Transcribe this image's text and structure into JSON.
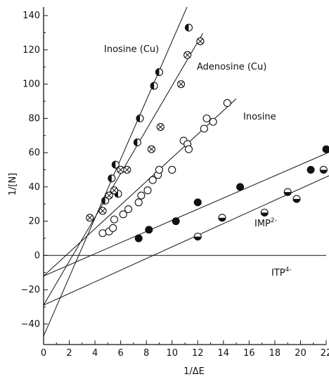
{
  "chart_data": {
    "type": "scatter",
    "xlabel": "1/ΔE",
    "ylabel": "1/[N]",
    "xlim": [
      0,
      22
    ],
    "ylim": [
      -52,
      145
    ],
    "x_ticks": [
      "0",
      "2",
      "4",
      "6",
      "8",
      "10",
      "12",
      "14",
      "16",
      "18",
      "20",
      "22"
    ],
    "y_ticks": [
      "-40",
      "-20",
      "0",
      "20",
      "40",
      "60",
      "80",
      "100",
      "120",
      "140"
    ],
    "grid": false,
    "legend": "none",
    "series": [
      {
        "name": "Inosine (Cu)",
        "marker": "half-filled-left",
        "fit": {
          "intercept": -47,
          "slope": 17.2
        },
        "points": [
          [
            4.8,
            32
          ],
          [
            5.3,
            45
          ],
          [
            5.6,
            53
          ],
          [
            5.8,
            36
          ],
          [
            7.3,
            66
          ],
          [
            7.5,
            80
          ],
          [
            8.6,
            99
          ],
          [
            9.0,
            107
          ],
          [
            11.3,
            133
          ]
        ]
      },
      {
        "name": "Adenosine (Cu)",
        "marker": "crossed-circle",
        "fit": {
          "intercept": -29,
          "slope": 12.8
        },
        "points": [
          [
            3.6,
            22
          ],
          [
            4.6,
            26
          ],
          [
            5.1,
            35
          ],
          [
            5.5,
            38
          ],
          [
            6.0,
            50
          ],
          [
            6.5,
            50
          ],
          [
            8.4,
            62
          ],
          [
            9.1,
            75
          ],
          [
            10.7,
            100
          ],
          [
            11.2,
            117
          ],
          [
            12.2,
            125
          ]
        ]
      },
      {
        "name": "Inosine",
        "marker": "open-circle",
        "fit": {
          "intercept": -12,
          "slope": 6.9
        },
        "points": [
          [
            4.6,
            13
          ],
          [
            5.1,
            14
          ],
          [
            5.4,
            16
          ],
          [
            5.5,
            21
          ],
          [
            6.2,
            24
          ],
          [
            6.6,
            27
          ],
          [
            7.4,
            31
          ],
          [
            7.6,
            35
          ],
          [
            8.1,
            38
          ],
          [
            8.5,
            44
          ],
          [
            8.9,
            47
          ],
          [
            9.0,
            50
          ],
          [
            10.0,
            50
          ],
          [
            10.9,
            67
          ],
          [
            11.2,
            65
          ],
          [
            11.3,
            62
          ],
          [
            12.5,
            74
          ],
          [
            13.2,
            78
          ],
          [
            12.7,
            80
          ],
          [
            14.3,
            89
          ]
        ]
      },
      {
        "name": "IMP",
        "label_sup": "2-",
        "marker": "filled-circle",
        "fit": {
          "intercept": -12,
          "slope": 3.25
        },
        "points": [
          [
            7.4,
            10
          ],
          [
            8.2,
            15
          ],
          [
            10.3,
            20
          ],
          [
            12.0,
            31
          ],
          [
            15.3,
            40
          ],
          [
            20.8,
            50
          ],
          [
            22.0,
            62
          ]
        ]
      },
      {
        "name": "ITP",
        "label_sup": "4-",
        "marker": "half-filled-bottom",
        "fit": {
          "intercept": -29,
          "slope": 3.4
        },
        "points": [
          [
            12.0,
            11
          ],
          [
            13.9,
            22
          ],
          [
            17.2,
            25
          ],
          [
            19.0,
            37
          ],
          [
            19.7,
            33
          ],
          [
            21.8,
            50
          ]
        ]
      }
    ]
  }
}
